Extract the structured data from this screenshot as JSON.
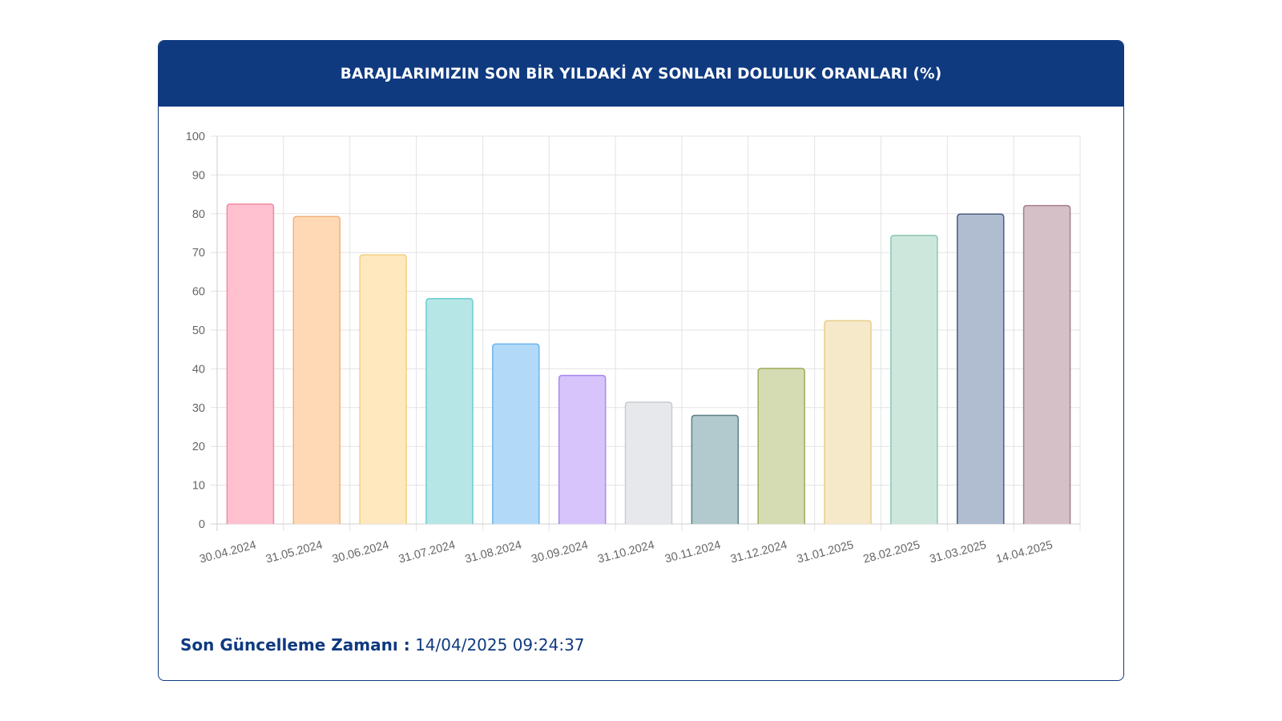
{
  "card": {
    "title": "BARAJLARIMIZIN SON BİR YILDAKİ AY SONLARI DOLULUK ORANLARI (%)",
    "footer_label": "Son Güncelleme Zamanı :",
    "footer_value": "14/04/2025 09:24:37"
  },
  "colors": {
    "header_bg": "#0f3a80",
    "grid": "#e3e3e3",
    "axis_text": "#666666"
  },
  "chart_data": {
    "type": "bar",
    "categories": [
      "30.04.2024",
      "31.05.2024",
      "30.06.2024",
      "31.07.2024",
      "31.08.2024",
      "30.09.2024",
      "31.10.2024",
      "30.11.2024",
      "31.12.2024",
      "31.01.2025",
      "28.02.2025",
      "31.03.2025",
      "14.04.2025"
    ],
    "values": [
      82.5,
      79.3,
      69.4,
      58.1,
      46.4,
      38.3,
      31.4,
      28.0,
      40.1,
      52.4,
      74.4,
      79.9,
      82.1
    ],
    "colors": [
      "#ffc1d0",
      "#ffd9b5",
      "#ffe8bd",
      "#b7e6e6",
      "#b2daf8",
      "#d6c4fb",
      "#e7e8eb",
      "#b2cacd",
      "#d5dbb2",
      "#f6e9c9",
      "#cde7dc",
      "#b0bdd1",
      "#d6c0c8"
    ],
    "borders": [
      "#f08aa3",
      "#f0b27a",
      "#f2d080",
      "#6ccccc",
      "#6db5ea",
      "#a889ee",
      "#c9cbcf",
      "#5d8186",
      "#9fab5e",
      "#e8cc8a",
      "#8bc8b0",
      "#4a5f80",
      "#a57e8c"
    ],
    "ylim": [
      0,
      100
    ],
    "yticks": [
      0,
      10,
      20,
      30,
      40,
      50,
      60,
      70,
      80,
      90,
      100
    ],
    "grid": true,
    "legend": "none"
  }
}
